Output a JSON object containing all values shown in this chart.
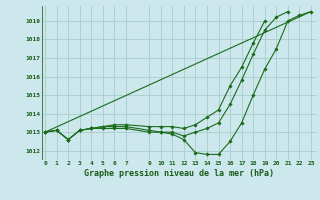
{
  "xlabel": "Graphe pression niveau de la mer (hPa)",
  "bg_color": "#cce8ed",
  "grid_color": "#aacccc",
  "line_color": "#1a6b1a",
  "marker_color": "#1a6b1a",
  "x_ticks": [
    0,
    1,
    2,
    3,
    4,
    5,
    6,
    7,
    9,
    10,
    11,
    12,
    13,
    14,
    15,
    16,
    17,
    18,
    19,
    20,
    21,
    22,
    23
  ],
  "ylim": [
    1011.5,
    1019.8
  ],
  "xlim": [
    -0.3,
    23.5
  ],
  "yticks": [
    1012,
    1013,
    1014,
    1015,
    1016,
    1017,
    1018,
    1019
  ],
  "lines": [
    {
      "x": [
        0,
        1,
        2,
        3,
        4,
        5,
        6,
        7,
        9,
        10,
        11,
        12,
        13,
        14,
        15,
        16,
        17,
        18,
        19,
        20,
        21,
        22,
        23
      ],
      "y": [
        1013.0,
        1013.1,
        1012.6,
        1013.1,
        1013.2,
        1013.2,
        1013.2,
        1013.2,
        1013.0,
        1013.0,
        1012.9,
        1012.6,
        1011.9,
        1011.8,
        1011.8,
        1012.5,
        1013.5,
        1015.0,
        1016.4,
        1017.5,
        1019.0,
        1019.3,
        1019.5
      ]
    },
    {
      "x": [
        0,
        1,
        2,
        3,
        4,
        5,
        6,
        7,
        9,
        10,
        11,
        12,
        13,
        14,
        15,
        16,
        17,
        18,
        19,
        20,
        21
      ],
      "y": [
        1013.0,
        1013.1,
        1012.6,
        1013.1,
        1013.2,
        1013.3,
        1013.3,
        1013.3,
        1013.1,
        1013.0,
        1013.0,
        1012.8,
        1013.0,
        1013.2,
        1013.5,
        1014.5,
        1015.8,
        1017.2,
        1018.5,
        1019.2,
        1019.5
      ]
    },
    {
      "x": [
        0,
        1,
        2,
        3,
        4,
        5,
        6,
        7,
        9,
        10,
        11,
        12,
        13,
        14,
        15,
        16,
        17,
        18,
        19
      ],
      "y": [
        1013.0,
        1013.1,
        1012.6,
        1013.1,
        1013.2,
        1013.3,
        1013.4,
        1013.4,
        1013.3,
        1013.3,
        1013.3,
        1013.2,
        1013.4,
        1013.8,
        1014.2,
        1015.5,
        1016.5,
        1017.8,
        1019.0
      ]
    },
    {
      "x": [
        0,
        23
      ],
      "y": [
        1013.0,
        1019.5
      ]
    }
  ]
}
